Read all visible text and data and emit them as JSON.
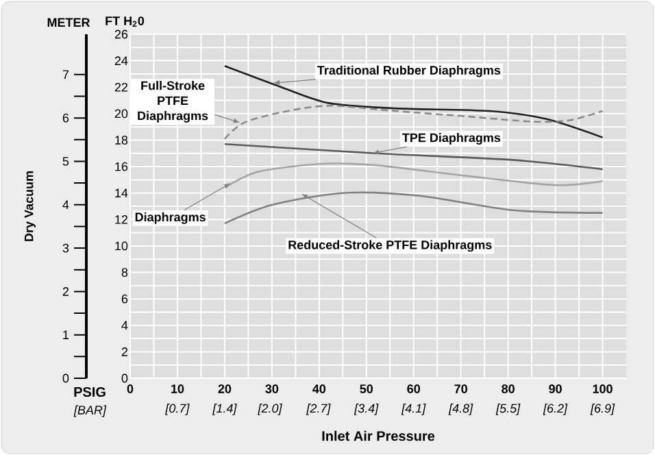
{
  "chart_data": {
    "type": "line",
    "xlabel": "Inlet Air Pressure",
    "ylabel": "FT H$_{2}$0",
    "y2label": "METER",
    "x2label": "[BAR]",
    "xlim": [
      0,
      105
    ],
    "xticks": [
      0,
      10,
      20,
      30,
      40,
      50,
      60,
      70,
      80,
      90,
      100
    ],
    "x2lim": [
      0,
      7.24
    ],
    "x2ticks": [
      {
        "value": 0.689,
        "label": "[0.7]"
      },
      {
        "value": 1.379,
        "label": "[1.4]"
      },
      {
        "value": 2.04,
        "label": "[2.0]"
      },
      {
        "value": 2.749,
        "label": "[2.7]"
      },
      {
        "value": 3.447,
        "label": "[3.4]"
      },
      {
        "value": 4.137,
        "label": "[4.1]"
      },
      {
        "value": 4.826,
        "label": "[4.8]"
      },
      {
        "value": 5.516,
        "label": "[5.5]"
      },
      {
        "value": 6.205,
        "label": "[6.2]"
      },
      {
        "value": 6.895,
        "label": "[6.9]"
      }
    ],
    "ylim": [
      0,
      26
    ],
    "yticks": [
      0,
      2,
      4,
      6,
      8,
      10,
      12,
      14,
      16,
      18,
      20,
      22,
      24,
      26
    ],
    "y2lim": [
      0,
      7.93
    ],
    "y2ticks": [
      0,
      1,
      2,
      3,
      4,
      5,
      6,
      7
    ],
    "grid": true,
    "marker": "none",
    "series": [
      {
        "color": "#231f20",
        "line_style": "solid",
        "x": [
          20,
          32,
          42,
          56,
          76,
          88,
          100
        ],
        "values": [
          23.6,
          22.0,
          20.8,
          20.4,
          20.2,
          19.6,
          18.2
        ]
      },
      {
        "color": "#8a8a8a",
        "line_style": "dashed",
        "x": [
          20,
          24,
          32,
          42,
          56,
          71,
          85,
          93,
          100
        ],
        "values": [
          18.1,
          19.3,
          20.1,
          20.6,
          20.2,
          19.8,
          19.4,
          19.5,
          20.2
        ]
      },
      {
        "color": "#5a5a5a",
        "line_style": "solid",
        "x": [
          20,
          52,
          81,
          100
        ],
        "values": [
          17.7,
          17.0,
          16.5,
          15.8
        ]
      },
      {
        "color": "#a5a5a5",
        "line_style": "solid",
        "x": [
          20,
          27,
          40,
          52,
          71,
          90,
          100
        ],
        "values": [
          14.4,
          15.6,
          16.2,
          16.1,
          15.3,
          14.6,
          14.9
        ]
      },
      {
        "color": "#808080",
        "line_style": "solid",
        "x": [
          20,
          30,
          45,
          61,
          81,
          100
        ],
        "values": [
          11.7,
          13.1,
          14.0,
          13.8,
          12.7,
          12.5
        ]
      }
    ],
    "annotations": [
      {
        "text": "Traditional Rubber Diaphragms",
        "x": 30,
        "y": 22.3
      },
      {
        "text": "Full-Stroke PTFE Diaphragms",
        "x": 23.5,
        "y": 19.3
      },
      {
        "text": "TPE Diaphragms",
        "x": 51,
        "y": 17.0
      },
      {
        "text": "Diaphragms",
        "x": 21.5,
        "y": 14.8
      },
      {
        "text": "Reduced-Stroke PTFE Diaphragms",
        "x": 36,
        "y": 14.0
      },
      "Dry Vacuum",
      "PSIG"
    ]
  }
}
